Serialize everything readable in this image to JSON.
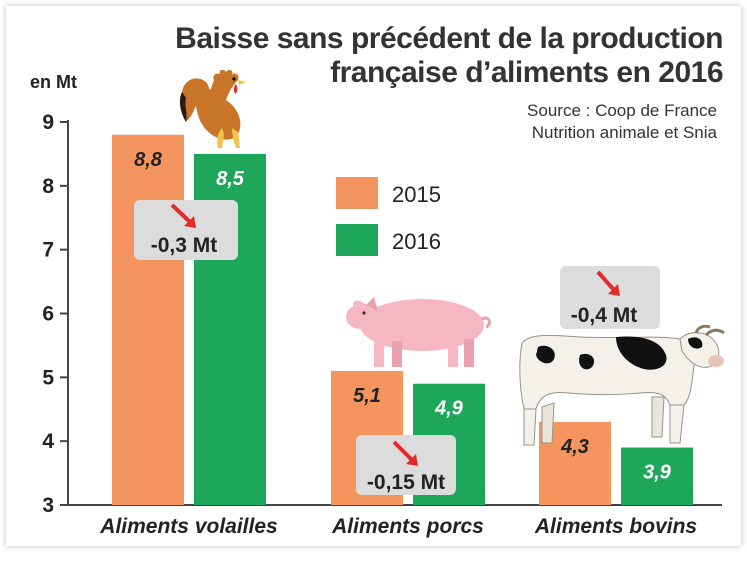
{
  "chart_data": {
    "type": "bar",
    "title": "Baisse sans précédent de la production française d’aliments en 2016",
    "title_lines": [
      "Baisse sans précédent de la production",
      "française d’aliments en 2016"
    ],
    "source_lines": [
      "Source : Coop de France",
      "Nutrition animale et Snia"
    ],
    "ylabel": "en Mt",
    "ylim": [
      3,
      9
    ],
    "yticks": [
      3,
      4,
      5,
      6,
      7,
      8,
      9
    ],
    "categories": [
      "Aliments volailles",
      "Aliments porcs",
      "Aliments bovins"
    ],
    "series": [
      {
        "name": "2015",
        "values": [
          8.8,
          5.1,
          4.3
        ],
        "labels": [
          "8,8",
          "5,1",
          "4,3"
        ]
      },
      {
        "name": "2016",
        "values": [
          8.5,
          4.9,
          3.9
        ],
        "labels": [
          "8,5",
          "4,9",
          "3,9"
        ]
      }
    ],
    "annotations": [
      "-0,3 Mt",
      "-0,15 Mt",
      "-0,4 Mt"
    ],
    "legend_position": "center",
    "grid": false
  },
  "colors": {
    "series_2015": "#f4955f",
    "series_2016": "#1ea65a",
    "annotation_bg": "#dcdcdc",
    "arrow": "#e32b2b",
    "text": "#222222"
  },
  "icons": [
    "rooster-icon",
    "pig-icon",
    "cow-icon",
    "down-arrow-icon"
  ]
}
